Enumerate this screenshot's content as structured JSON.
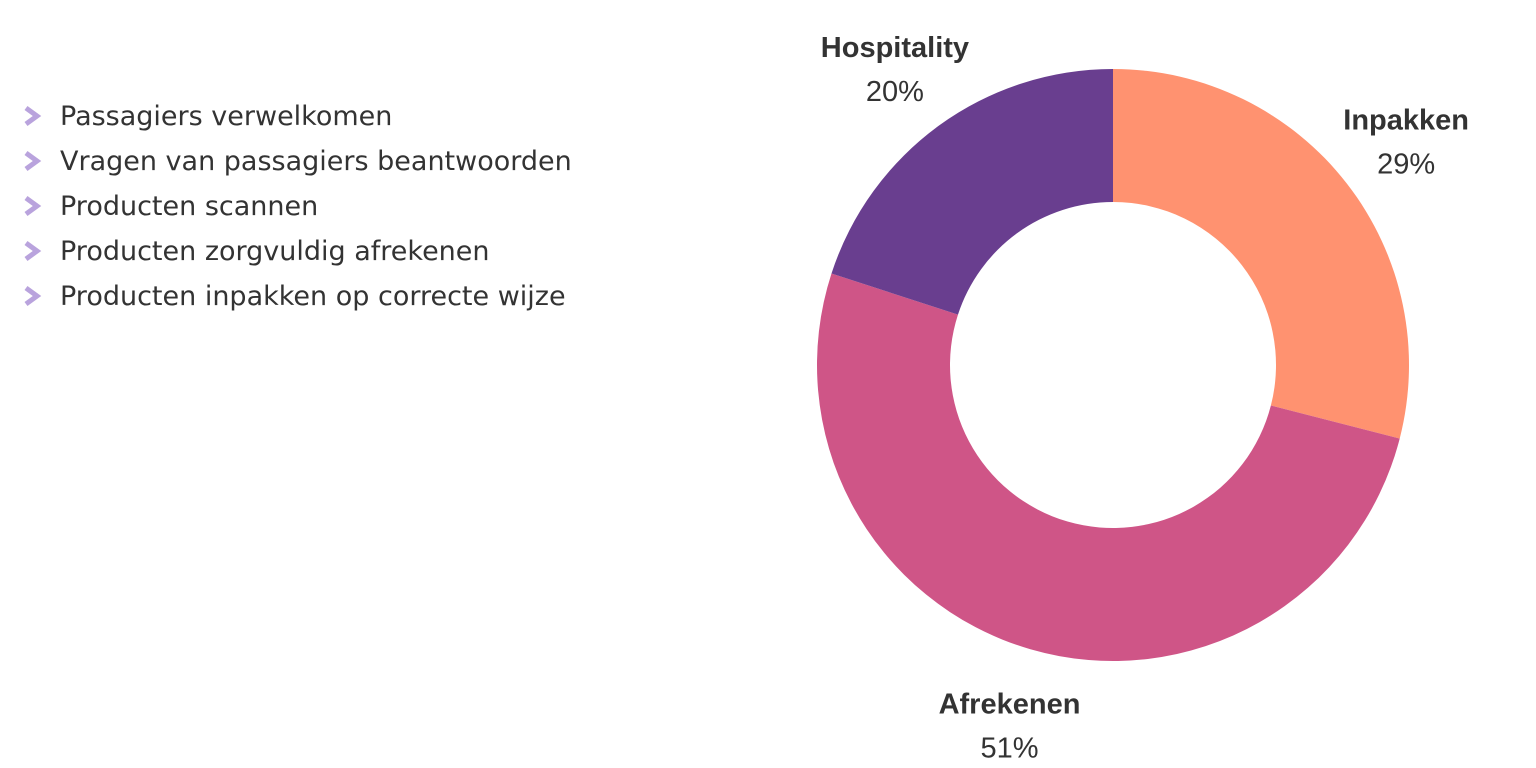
{
  "tasks": {
    "items": [
      {
        "label": "Passagiers verwelkomen",
        "icon": "chevron-right-icon"
      },
      {
        "label": "Vragen van passagiers beantwoorden",
        "icon": "chevron-right-icon"
      },
      {
        "label": "Producten scannen",
        "icon": "chevron-right-icon"
      },
      {
        "label": "Producten zorgvuldig afrekenen",
        "icon": "chevron-right-icon"
      },
      {
        "label": "Producten inpakken op correcte wijze",
        "icon": "chevron-right-icon"
      }
    ],
    "bullet_color": "#b9a3dd"
  },
  "chart_data": {
    "type": "pie",
    "donut": true,
    "legend": "none",
    "slices": [
      {
        "name": "Inpakken",
        "value": 29,
        "value_label": "29%",
        "color": "#ff9270"
      },
      {
        "name": "Afrekenen",
        "value": 51,
        "value_label": "51%",
        "color": "#cf5587"
      },
      {
        "name": "Hospitality",
        "value": 20,
        "value_label": "20%",
        "color": "#693e8f"
      }
    ]
  }
}
